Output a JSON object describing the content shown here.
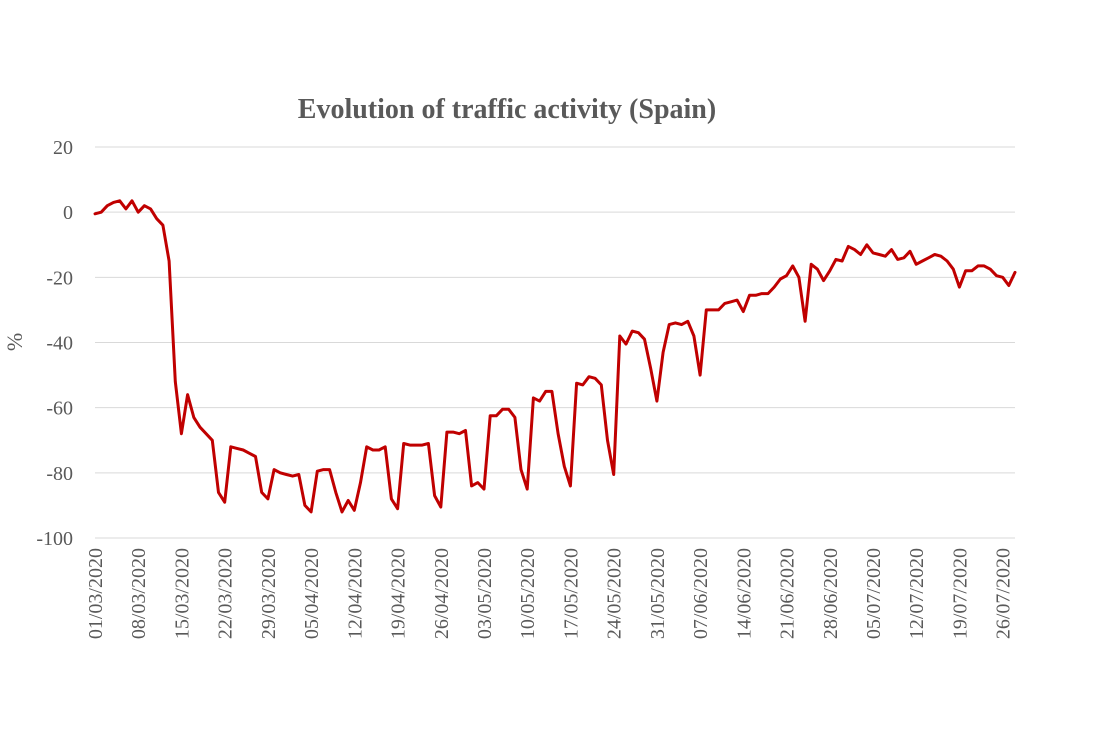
{
  "chart_data": {
    "type": "line",
    "title": "Evolution of traffic activity (Spain)",
    "xlabel": "",
    "ylabel": "%",
    "ylim": [
      -100,
      20
    ],
    "yticks": [
      20,
      0,
      -20,
      -40,
      -60,
      -80,
      -100
    ],
    "grid": true,
    "legend": "none",
    "x_start": "01/03/2020",
    "x_end": "27/07/2020",
    "x_tick_labels": [
      "01/03/2020",
      "08/03/2020",
      "15/03/2020",
      "22/03/2020",
      "29/03/2020",
      "05/04/2020",
      "12/04/2020",
      "19/04/2020",
      "26/04/2020",
      "03/05/2020",
      "10/05/2020",
      "17/05/2020",
      "24/05/2020",
      "31/05/2020",
      "07/06/2020",
      "14/06/2020",
      "21/06/2020",
      "28/06/2020",
      "05/07/2020",
      "12/07/2020",
      "19/07/2020",
      "26/07/2020"
    ],
    "series": [
      {
        "color": "#c00000",
        "values": [
          -0.5,
          0,
          2,
          3,
          3.5,
          1,
          3.5,
          0,
          2,
          1,
          -2,
          -4,
          -15,
          -52,
          -68,
          -56,
          -63,
          -66,
          -68,
          -70,
          -86,
          -89,
          -72,
          -72.5,
          -73,
          -74,
          -75,
          -86,
          -88,
          -79,
          -80,
          -80.5,
          -81,
          -80.5,
          -90,
          -92,
          -79.5,
          -79,
          -79,
          -86,
          -92,
          -88.5,
          -91.5,
          -83,
          -72,
          -73,
          -73,
          -72,
          -88,
          -91,
          -71,
          -71.5,
          -71.5,
          -71.5,
          -71,
          -87,
          -90.5,
          -67.5,
          -67.5,
          -68,
          -67,
          -84,
          -83,
          -85,
          -62.5,
          -62.5,
          -60.5,
          -60.5,
          -63,
          -79,
          -85,
          -57,
          -58,
          -55,
          -55,
          -68,
          -78,
          -84,
          -52.5,
          -53,
          -50.5,
          -51,
          -53,
          -70,
          -80.5,
          -38,
          -40.5,
          -36.5,
          -37,
          -39,
          -48,
          -58,
          -43,
          -34.5,
          -34,
          -34.5,
          -33.5,
          -38,
          -50,
          -30,
          -30,
          -30,
          -28,
          -27.5,
          -27,
          -30.5,
          -25.5,
          -25.5,
          -25,
          -25,
          -23,
          -20.5,
          -19.5,
          -16.5,
          -20,
          -33.5,
          -16,
          -17.5,
          -21,
          -18,
          -14.5,
          -15,
          -10.5,
          -11.5,
          -13,
          -10,
          -12.5,
          -13,
          -13.5,
          -11.5,
          -14.5,
          -14,
          -12,
          -16,
          -15,
          -14,
          -13,
          -13.5,
          -15,
          -17.5,
          -23,
          -18,
          -18,
          -16.5,
          -16.5,
          -17.5,
          -19.5,
          -20,
          -22.5,
          -18.5
        ]
      }
    ]
  }
}
